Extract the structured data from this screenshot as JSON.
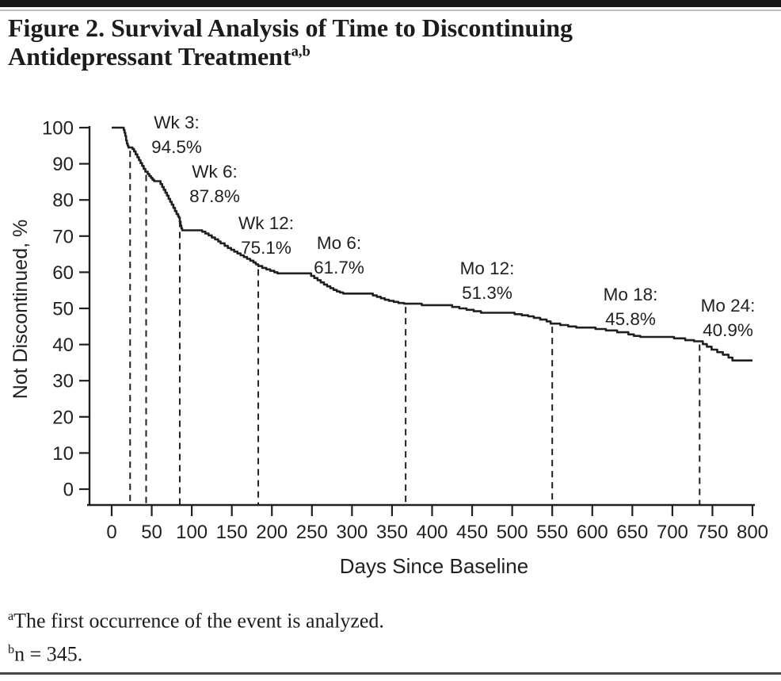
{
  "header": {
    "title": "Figure 2. Survival Analysis of Time to Discontinuing Antidepressant Treatment",
    "title_superscript": "a,b"
  },
  "chart_data": {
    "type": "line",
    "subtype": "kaplan-meier-step-survival-curve",
    "title": "Survival Analysis of Time to Discontinuing Antidepressant Treatment",
    "xlabel": "Days Since Baseline",
    "ylabel": "Not Discontinued, %",
    "xlim": [
      0,
      800
    ],
    "ylim": [
      0,
      100
    ],
    "grid": false,
    "x_ticks": [
      0,
      50,
      100,
      150,
      200,
      250,
      300,
      350,
      400,
      450,
      500,
      550,
      600,
      650,
      700,
      750,
      800
    ],
    "y_ticks": [
      0,
      10,
      20,
      30,
      40,
      50,
      60,
      70,
      80,
      90,
      100
    ],
    "milestones": [
      {
        "label": "Wk 3",
        "day": 21,
        "percent": 94.5,
        "display_line1": "Wk 3:",
        "display_line2": "94.5%",
        "line_day": 23
      },
      {
        "label": "Wk 6",
        "day": 42,
        "percent": 87.8,
        "display_line1": "Wk 6:",
        "display_line2": "87.8%",
        "line_day": 43
      },
      {
        "label": "Wk 12",
        "day": 84,
        "percent": 75.1,
        "display_line1": "Wk 12:",
        "display_line2": "75.1%",
        "line_day": 85
      },
      {
        "label": "Mo 6",
        "day": 183,
        "percent": 61.7,
        "display_line1": "Mo 6:",
        "display_line2": "61.7%",
        "line_day": 183
      },
      {
        "label": "Mo 12",
        "day": 365,
        "percent": 51.3,
        "display_line1": "Mo 12:",
        "display_line2": "51.3%",
        "line_day": 367
      },
      {
        "label": "Mo 18",
        "day": 548,
        "percent": 45.8,
        "display_line1": "Mo 18:",
        "display_line2": "45.8%",
        "line_day": 550
      },
      {
        "label": "Mo 24",
        "day": 730,
        "percent": 40.9,
        "display_line1": "Mo 24:",
        "display_line2": "40.9%",
        "line_day": 734
      }
    ],
    "step_points": [
      [
        0,
        100
      ],
      [
        15,
        99.4
      ],
      [
        16,
        98.6
      ],
      [
        17,
        97.7
      ],
      [
        18,
        96.5
      ],
      [
        19,
        95.6
      ],
      [
        20,
        95.0
      ],
      [
        21,
        94.5
      ],
      [
        26,
        94.1
      ],
      [
        28,
        93.4
      ],
      [
        30,
        92.6
      ],
      [
        32,
        91.8
      ],
      [
        34,
        91.0
      ],
      [
        36,
        90.2
      ],
      [
        38,
        89.4
      ],
      [
        40,
        88.6
      ],
      [
        42,
        87.8
      ],
      [
        45,
        87.2
      ],
      [
        47,
        86.6
      ],
      [
        49,
        86.1
      ],
      [
        51,
        85.6
      ],
      [
        53,
        85.2
      ],
      [
        61,
        84.4
      ],
      [
        63,
        83.6
      ],
      [
        65,
        82.8
      ],
      [
        67,
        82.0
      ],
      [
        69,
        81.2
      ],
      [
        71,
        80.3
      ],
      [
        73,
        79.5
      ],
      [
        75,
        78.7
      ],
      [
        77,
        77.8
      ],
      [
        79,
        76.9
      ],
      [
        81,
        76.1
      ],
      [
        83,
        75.5
      ],
      [
        84,
        75.1
      ],
      [
        85,
        74.0
      ],
      [
        86,
        72.9
      ],
      [
        87,
        72.1
      ],
      [
        88,
        71.6
      ],
      [
        113,
        71.2
      ],
      [
        117,
        70.7
      ],
      [
        121,
        70.2
      ],
      [
        125,
        69.6
      ],
      [
        129,
        69.1
      ],
      [
        133,
        68.5
      ],
      [
        136,
        68.0
      ],
      [
        141,
        67.3
      ],
      [
        145,
        66.7
      ],
      [
        149,
        66.2
      ],
      [
        153,
        65.7
      ],
      [
        157,
        65.2
      ],
      [
        161,
        64.7
      ],
      [
        165,
        64.2
      ],
      [
        169,
        63.7
      ],
      [
        173,
        63.2
      ],
      [
        177,
        62.7
      ],
      [
        180,
        62.2
      ],
      [
        183,
        61.7
      ],
      [
        188,
        61.2
      ],
      [
        193,
        60.8
      ],
      [
        198,
        60.4
      ],
      [
        203,
        60.0
      ],
      [
        207,
        59.7
      ],
      [
        249,
        59.0
      ],
      [
        253,
        58.4
      ],
      [
        257,
        57.8
      ],
      [
        261,
        57.2
      ],
      [
        265,
        56.6
      ],
      [
        269,
        56.1
      ],
      [
        273,
        55.6
      ],
      [
        277,
        55.1
      ],
      [
        281,
        54.7
      ],
      [
        285,
        54.4
      ],
      [
        289,
        54.1
      ],
      [
        326,
        53.6
      ],
      [
        331,
        53.2
      ],
      [
        336,
        52.8
      ],
      [
        341,
        52.4
      ],
      [
        346,
        52.1
      ],
      [
        352,
        51.8
      ],
      [
        358,
        51.5
      ],
      [
        365,
        51.3
      ],
      [
        387,
        50.9
      ],
      [
        425,
        50.4
      ],
      [
        434,
        50.0
      ],
      [
        443,
        49.6
      ],
      [
        452,
        49.2
      ],
      [
        461,
        48.8
      ],
      [
        503,
        48.4
      ],
      [
        512,
        48.1
      ],
      [
        520,
        47.8
      ],
      [
        527,
        47.4
      ],
      [
        535,
        46.9
      ],
      [
        543,
        46.4
      ],
      [
        548,
        45.8
      ],
      [
        560,
        45.4
      ],
      [
        570,
        45.0
      ],
      [
        580,
        44.7
      ],
      [
        604,
        44.3
      ],
      [
        617,
        43.9
      ],
      [
        631,
        43.4
      ],
      [
        645,
        42.8
      ],
      [
        652,
        42.4
      ],
      [
        660,
        42.1
      ],
      [
        702,
        41.7
      ],
      [
        716,
        41.2
      ],
      [
        727,
        40.9
      ],
      [
        738,
        40.1
      ],
      [
        743,
        39.4
      ],
      [
        749,
        38.6
      ],
      [
        756,
        37.9
      ],
      [
        763,
        37.2
      ],
      [
        770,
        36.4
      ],
      [
        775,
        35.6
      ],
      [
        800,
        35.6
      ]
    ],
    "line_color": "#231f20",
    "legend_position": "none"
  },
  "footnotes": [
    {
      "sup": "a",
      "text": "The first occurrence of the event is analyzed."
    },
    {
      "sup": "b",
      "text": "n = 345."
    }
  ]
}
